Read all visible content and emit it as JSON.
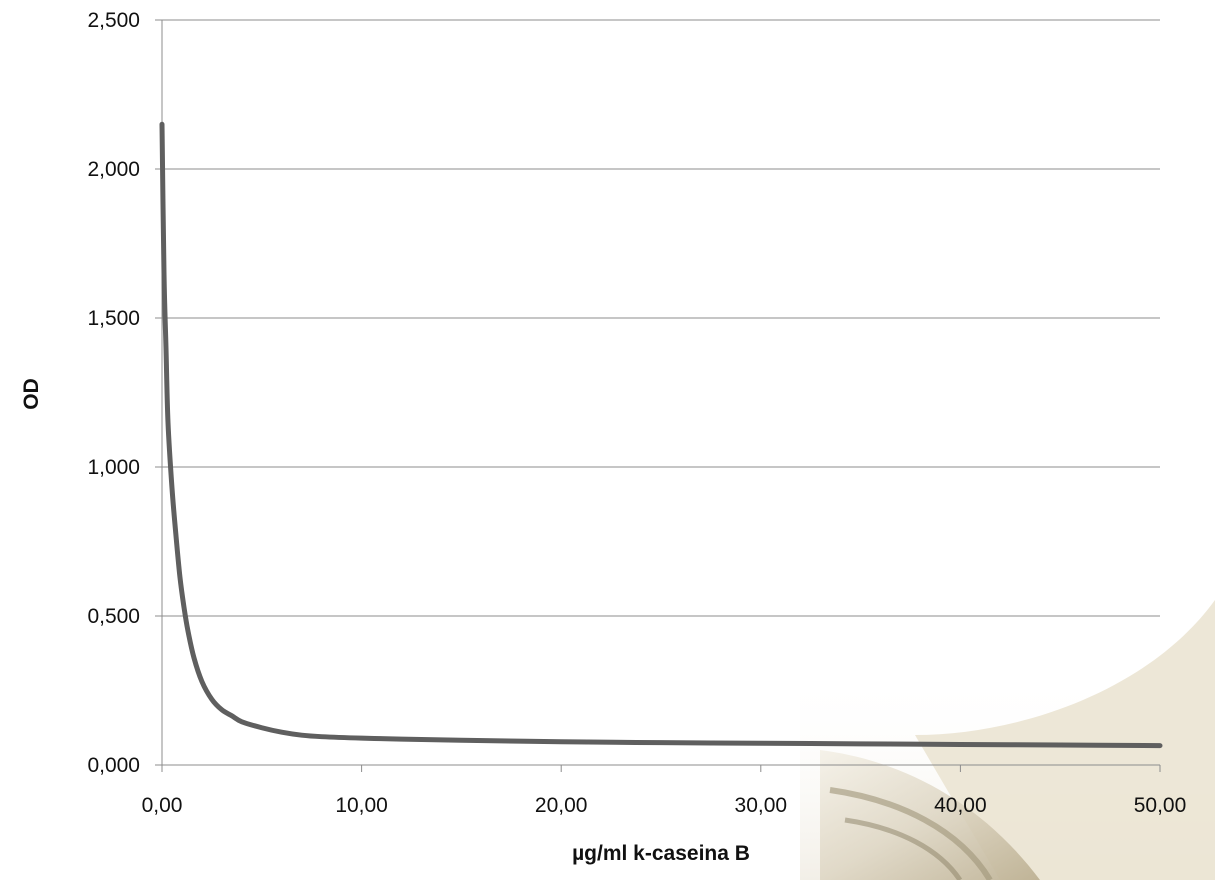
{
  "chart_data": {
    "type": "line",
    "title": "",
    "xlabel": "µg/ml k-caseina B",
    "ylabel": "OD",
    "xlim": [
      0,
      50
    ],
    "ylim": [
      0,
      2.5
    ],
    "x_ticks": [
      0,
      10,
      20,
      30,
      40,
      50
    ],
    "y_ticks": [
      0,
      0.5,
      1,
      1.5,
      2,
      2.5
    ],
    "x_tick_labels": [
      "0,00",
      "10,00",
      "20,00",
      "30,00",
      "40,00",
      "50,00"
    ],
    "y_tick_labels": [
      "0,000",
      "0,500",
      "1,000",
      "1,500",
      "2,000",
      "2,500"
    ],
    "grid": "horizontal",
    "legend": "none",
    "series": [
      {
        "color": "#5f5f5f",
        "x": [
          0.0,
          0.1,
          0.2,
          0.3,
          0.5,
          0.7,
          0.9,
          1.1,
          1.3,
          1.6,
          2.0,
          2.5,
          3.0,
          3.5,
          4.0,
          5.0,
          6.0,
          7.0,
          8.0,
          10.0,
          12.0,
          15.0,
          20.0,
          25.0,
          30.0,
          35.0,
          40.0,
          45.0,
          50.0
        ],
        "y": [
          2.15,
          1.65,
          1.4,
          1.15,
          0.93,
          0.77,
          0.63,
          0.53,
          0.45,
          0.36,
          0.28,
          0.22,
          0.185,
          0.165,
          0.145,
          0.125,
          0.11,
          0.1,
          0.095,
          0.09,
          0.087,
          0.083,
          0.078,
          0.075,
          0.073,
          0.071,
          0.069,
          0.067,
          0.065
        ]
      }
    ]
  }
}
